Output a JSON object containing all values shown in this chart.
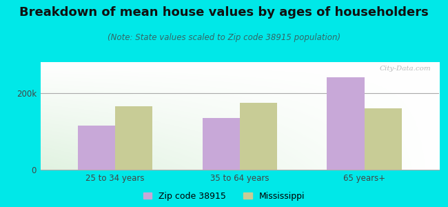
{
  "title": "Breakdown of mean house values by ages of householders",
  "subtitle": "(Note: State values scaled to Zip code 38915 population)",
  "categories": [
    "25 to 34 years",
    "35 to 64 years",
    "65 years+"
  ],
  "zip_values": [
    115000,
    135000,
    240000
  ],
  "ms_values": [
    165000,
    175000,
    160000
  ],
  "zip_color": "#c8a8d8",
  "ms_color": "#c8cc96",
  "zip_label": "Zip code 38915",
  "ms_label": "Mississippi",
  "ylim": [
    0,
    280000
  ],
  "yticks": [
    0,
    200000
  ],
  "ytick_labels": [
    "0",
    "200k"
  ],
  "bg_outer": "#00e8e8",
  "bar_width": 0.3,
  "title_fontsize": 13,
  "subtitle_fontsize": 8.5,
  "tick_fontsize": 8.5,
  "legend_fontsize": 9,
  "watermark": "City-Data.com"
}
